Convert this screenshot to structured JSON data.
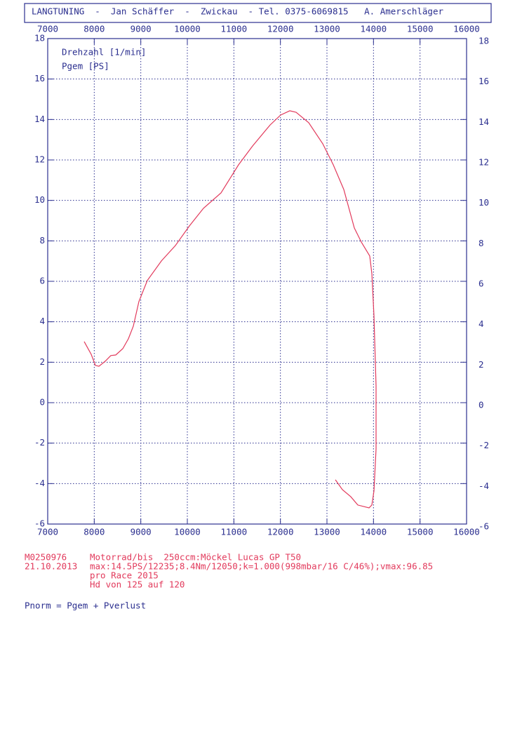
{
  "header": "LANGTUNING  -  Jan Schäffer  -  Zwickau  - Tel. 0375-6069815   A. Amerschläger",
  "chart_data": {
    "type": "line",
    "x_label": "Drehzahl [1/min]",
    "y_label": "Pgem [PS]",
    "x": [
      7784,
      7935,
      8025,
      8100,
      8236,
      8357,
      8462,
      8613,
      8734,
      8839,
      8960,
      9141,
      9443,
      9744,
      10045,
      10347,
      10724,
      11101,
      11402,
      11779,
      12005,
      12201,
      12337,
      12608,
      12910,
      13136,
      13362,
      13588,
      13739,
      13920,
      13965,
      14010,
      14055,
      14055,
      14010,
      13965,
      13905,
      13664,
      13513,
      13332,
      13181
    ],
    "values": [
      3.02,
      2.39,
      1.84,
      1.8,
      2.05,
      2.33,
      2.36,
      2.67,
      3.16,
      3.78,
      5.0,
      6.04,
      7.01,
      7.77,
      8.74,
      9.61,
      10.37,
      11.76,
      12.69,
      13.73,
      14.22,
      14.43,
      14.36,
      13.84,
      12.8,
      11.76,
      10.54,
      8.64,
      7.94,
      7.25,
      6.38,
      4.3,
      0.83,
      -2.29,
      -4.37,
      -5.06,
      -5.2,
      -5.06,
      -4.65,
      -4.3,
      -3.81
    ],
    "color": "#e23a5c",
    "xlim": [
      7000,
      16000
    ],
    "xticks": [
      7000,
      8000,
      9000,
      10000,
      11000,
      12000,
      13000,
      14000,
      15000,
      16000
    ],
    "ylim": [
      -6,
      18
    ],
    "yticks": [
      -6,
      -4,
      -2,
      0,
      2,
      4,
      6,
      8,
      10,
      12,
      14,
      16,
      18
    ],
    "grid": true
  },
  "notes": {
    "left": [
      "M0250976",
      "21.10.2013"
    ],
    "right": [
      "Motorrad/bis  250ccm:Möckel Lucas GP T50",
      "max:14.5PS/12235;8.4Nm/12050;k=1.000(998mbar/16 C/46%);vmax:96.85",
      "pro Race 2015",
      "Hd von 125 auf 120"
    ],
    "formula": "Pnorm = Pgem + Pverlust"
  }
}
